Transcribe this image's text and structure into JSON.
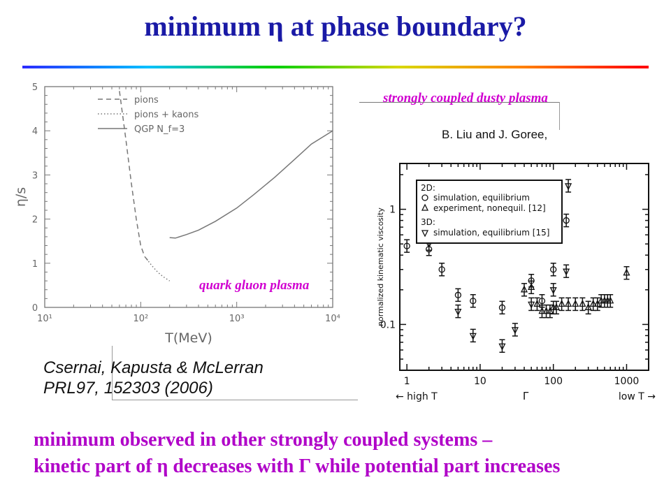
{
  "slide": {
    "title": "minimum η at phase boundary?",
    "bottom_line1": "minimum observed in other strongly coupled systems –",
    "bottom_line2": "kinetic part of η decreases with Γ while potential part increases"
  },
  "labels": {
    "dusty_plasma": "strongly coupled dusty plasma",
    "qgp": "quark gluon plasma",
    "liu_goree": "B. Liu and J. Goree,",
    "csernai_line1": "Csernai, Kapusta & McLerran",
    "csernai_line2": "PRL97, 152303 (2006)"
  },
  "chart_data": [
    {
      "type": "line",
      "xlabel": "T(MeV)",
      "ylabel": "η/s",
      "xscale": "log",
      "xlim": [
        10,
        10000
      ],
      "ylim": [
        0,
        5
      ],
      "xticks": [
        10,
        100,
        1000,
        10000
      ],
      "xtick_labels": [
        "10¹",
        "10²",
        "10³",
        "10⁴"
      ],
      "yticks": [
        0,
        1,
        2,
        3,
        4,
        5
      ],
      "legend_position": "top-left",
      "series": [
        {
          "name": "pions",
          "style": "dashed",
          "x": [
            60,
            70,
            80,
            90,
            100,
            110,
            120
          ],
          "y": [
            4.9,
            3.8,
            2.8,
            2.0,
            1.4,
            1.15,
            1.05
          ]
        },
        {
          "name": "pions + kaons",
          "style": "dotted",
          "x": [
            115,
            130,
            150,
            170,
            200
          ],
          "y": [
            1.1,
            0.95,
            0.8,
            0.7,
            0.6
          ]
        },
        {
          "name": "QGP N_f=3",
          "style": "solid",
          "x": [
            200,
            230,
            300,
            400,
            600,
            1000,
            1500,
            2500,
            4000,
            6000,
            10000
          ],
          "y": [
            1.58,
            1.57,
            1.65,
            1.75,
            1.95,
            2.25,
            2.55,
            2.95,
            3.35,
            3.7,
            4.0
          ]
        }
      ]
    },
    {
      "type": "scatter",
      "xlabel": "Γ",
      "xlabel_left": "← high T",
      "xlabel_right": "low T →",
      "ylabel": "normalized kinematic viscosity",
      "xscale": "log",
      "yscale": "log",
      "xlim": [
        0.8,
        2000
      ],
      "ylim": [
        0.04,
        2.5
      ],
      "xticks": [
        1,
        10,
        100,
        1000
      ],
      "xtick_labels": [
        "1",
        "10",
        "100",
        "1000"
      ],
      "yticks": [
        0.1,
        1
      ],
      "ytick_labels": [
        "0.1",
        "1"
      ],
      "legend_position": "top-left",
      "legend": {
        "heading_2d": "2D:",
        "heading_3d": "3D:",
        "entries": [
          {
            "marker": "circle",
            "text": "simulation, equilibrium"
          },
          {
            "marker": "triangle-up",
            "text": "experiment, nonequil. [12]"
          },
          {
            "marker": "triangle-down",
            "text": "simulation, equilibrium [15]"
          }
        ]
      },
      "series": [
        {
          "name": "simulation, equilibrium",
          "marker": "circle",
          "x": [
            1,
            2,
            3,
            5,
            8,
            20,
            50,
            70,
            100,
            150
          ],
          "y": [
            0.48,
            0.45,
            0.3,
            0.18,
            0.16,
            0.14,
            0.24,
            0.16,
            0.3,
            0.8
          ]
        },
        {
          "name": "experiment, nonequil. [12]",
          "marker": "triangle-up",
          "x": [
            40,
            50,
            60,
            70,
            80,
            90,
            100,
            110,
            130,
            160,
            200,
            250,
            300,
            350,
            400,
            450,
            500,
            550,
            600,
            1000
          ],
          "y": [
            0.2,
            0.21,
            0.15,
            0.13,
            0.13,
            0.13,
            0.14,
            0.14,
            0.15,
            0.15,
            0.15,
            0.15,
            0.14,
            0.15,
            0.15,
            0.16,
            0.16,
            0.16,
            0.16,
            0.28
          ]
        },
        {
          "name": "simulation, equilibrium [15]",
          "marker": "triangle-down",
          "x": [
            2,
            5,
            8,
            20,
            30,
            50,
            100,
            150,
            160
          ],
          "y": [
            0.5,
            0.13,
            0.08,
            0.065,
            0.09,
            0.15,
            0.2,
            0.29,
            1.6
          ]
        }
      ]
    }
  ]
}
